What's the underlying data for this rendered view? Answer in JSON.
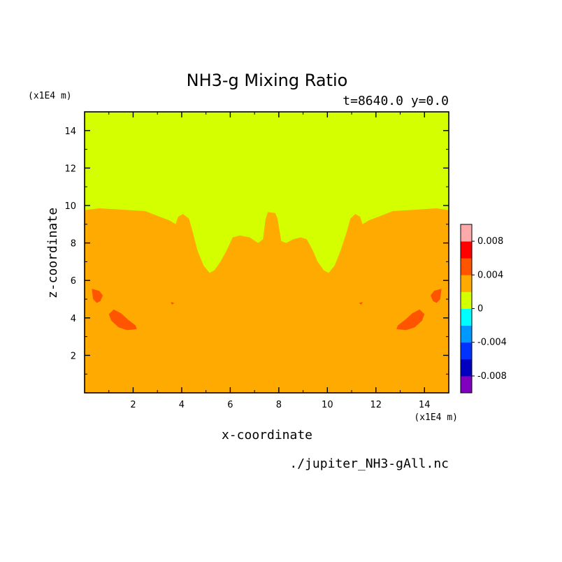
{
  "chart_data": {
    "type": "heatmap",
    "title": "NH3-g Mixing Ratio",
    "subtitle": "t=8640.0 y=0.0",
    "xlabel": "x-coordinate",
    "ylabel": "z-coordinate",
    "x_unit": "(x1E4 m)",
    "y_unit": "(x1E4 m)",
    "source": "./jupiter_NH3-gAll.nc",
    "xlim": [
      0,
      15
    ],
    "ylim": [
      0,
      15
    ],
    "x_ticks": [
      2,
      4,
      6,
      8,
      10,
      12,
      14
    ],
    "y_ticks": [
      2,
      4,
      6,
      8,
      10,
      12,
      14
    ],
    "colorbar": {
      "colors": [
        "#7f00bf",
        "#0000bf",
        "#0033ff",
        "#0099ff",
        "#00ffff",
        "#d4ff00",
        "#ffaa00",
        "#ff5500",
        "#ff0000",
        "#ffaaaa"
      ],
      "bounds": [
        -0.01,
        -0.008,
        -0.006,
        -0.004,
        -0.002,
        0,
        0.002,
        0.004,
        0.006,
        0.008,
        0.01
      ],
      "tick_labels": [
        {
          "value": -0.008,
          "label": "-0.008"
        },
        {
          "value": -0.004,
          "label": "-0.004"
        },
        {
          "value": 0,
          "label": "0"
        },
        {
          "value": 0.004,
          "label": "0.004"
        },
        {
          "value": 0.008,
          "label": "0.008"
        }
      ]
    },
    "background_level": "0 to 0.002",
    "regions": [
      {
        "name": "0.002 to 0.004",
        "color": "#ffaa00",
        "boundary": [
          [
            0,
            0
          ],
          [
            15,
            0
          ],
          [
            15,
            9.75
          ],
          [
            14.5,
            9.85
          ],
          [
            13.9,
            9.8
          ],
          [
            13.3,
            9.75
          ],
          [
            12.7,
            9.7
          ],
          [
            12.1,
            9.4
          ],
          [
            11.7,
            9.2
          ],
          [
            11.45,
            9.0
          ],
          [
            11.35,
            9.4
          ],
          [
            11.15,
            9.55
          ],
          [
            10.95,
            9.3
          ],
          [
            10.8,
            8.6
          ],
          [
            10.55,
            7.6
          ],
          [
            10.3,
            6.8
          ],
          [
            10.05,
            6.4
          ],
          [
            9.85,
            6.55
          ],
          [
            9.6,
            7.0
          ],
          [
            9.4,
            7.6
          ],
          [
            9.15,
            8.2
          ],
          [
            8.9,
            8.3
          ],
          [
            8.6,
            8.2
          ],
          [
            8.3,
            8.0
          ],
          [
            8.1,
            8.1
          ],
          [
            7.95,
            9.3
          ],
          [
            7.85,
            9.6
          ],
          [
            7.55,
            9.65
          ],
          [
            7.45,
            9.25
          ],
          [
            7.35,
            8.2
          ],
          [
            7.15,
            8.0
          ],
          [
            6.8,
            8.3
          ],
          [
            6.4,
            8.4
          ],
          [
            6.1,
            8.3
          ],
          [
            5.85,
            7.6
          ],
          [
            5.6,
            7.0
          ],
          [
            5.35,
            6.55
          ],
          [
            5.15,
            6.4
          ],
          [
            4.9,
            6.8
          ],
          [
            4.65,
            7.6
          ],
          [
            4.45,
            8.6
          ],
          [
            4.3,
            9.3
          ],
          [
            4.05,
            9.55
          ],
          [
            3.85,
            9.4
          ],
          [
            3.75,
            9.0
          ],
          [
            3.5,
            9.2
          ],
          [
            3.1,
            9.4
          ],
          [
            2.5,
            9.7
          ],
          [
            1.9,
            9.75
          ],
          [
            1.3,
            9.8
          ],
          [
            0.6,
            9.85
          ],
          [
            0,
            9.75
          ]
        ]
      },
      {
        "name": "0.004 to 0.006",
        "color": "#ff5500",
        "boundary": [
          [
            1.0,
            4.2
          ],
          [
            1.2,
            4.45
          ],
          [
            1.5,
            4.25
          ],
          [
            1.8,
            3.9
          ],
          [
            2.1,
            3.6
          ],
          [
            2.15,
            3.4
          ],
          [
            1.75,
            3.35
          ],
          [
            1.4,
            3.5
          ],
          [
            1.1,
            3.85
          ]
        ]
      },
      {
        "name": "0.004 to 0.006",
        "color": "#ff5500",
        "boundary": [
          [
            14.0,
            4.2
          ],
          [
            13.8,
            4.45
          ],
          [
            13.5,
            4.25
          ],
          [
            13.2,
            3.9
          ],
          [
            12.9,
            3.6
          ],
          [
            12.85,
            3.4
          ],
          [
            13.25,
            3.35
          ],
          [
            13.6,
            3.5
          ],
          [
            13.9,
            3.85
          ]
        ]
      },
      {
        "name": "0.004 to 0.006",
        "color": "#ff5500",
        "boundary": [
          [
            0.3,
            5.55
          ],
          [
            0.6,
            5.45
          ],
          [
            0.75,
            5.2
          ],
          [
            0.65,
            4.9
          ],
          [
            0.5,
            4.8
          ],
          [
            0.35,
            5.0
          ]
        ]
      },
      {
        "name": "0.004 to 0.006",
        "color": "#ff5500",
        "boundary": [
          [
            14.7,
            5.55
          ],
          [
            14.4,
            5.45
          ],
          [
            14.25,
            5.2
          ],
          [
            14.35,
            4.9
          ],
          [
            14.5,
            4.8
          ],
          [
            14.65,
            5.0
          ]
        ]
      },
      {
        "name": "0.004 to 0.006",
        "color": "#ff5500",
        "boundary": [
          [
            3.55,
            4.85
          ],
          [
            3.7,
            4.8
          ],
          [
            3.6,
            4.7
          ]
        ]
      },
      {
        "name": "0.004 to 0.006",
        "color": "#ff5500",
        "boundary": [
          [
            11.45,
            4.85
          ],
          [
            11.3,
            4.8
          ],
          [
            11.4,
            4.7
          ]
        ]
      }
    ]
  }
}
